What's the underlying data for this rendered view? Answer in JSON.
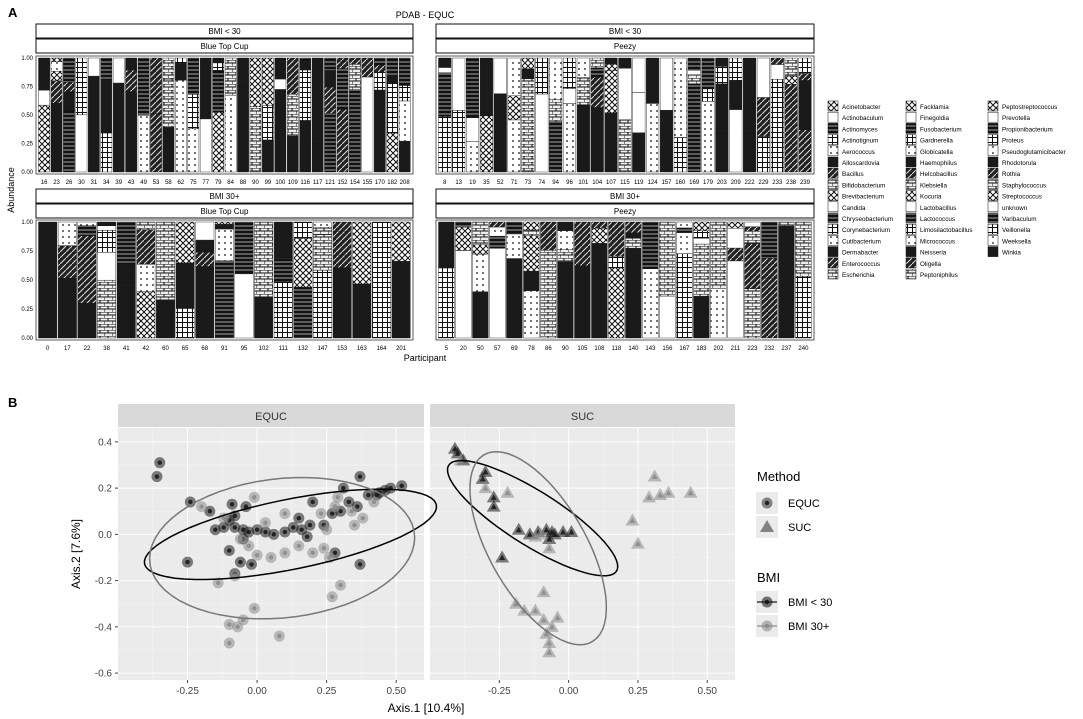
{
  "panel_a_letter": "A",
  "panel_b_letter": "B",
  "chart_data": [
    {
      "type": "bar",
      "title": "PDAB - EQUC",
      "xlabel": "Participant",
      "ylabel": "Abundance",
      "y_ticks": [
        "0.00",
        "0.25",
        "0.50",
        "0.75",
        "1.00"
      ],
      "ylim": [
        0,
        1
      ],
      "stacked": true,
      "facets": [
        {
          "bmi": "BMI < 30",
          "method": "Blue Top Cup",
          "participants": [
            "16",
            "23",
            "26",
            "30",
            "31",
            "34",
            "39",
            "43",
            "49",
            "53",
            "58",
            "62",
            "75",
            "77",
            "79",
            "84",
            "88",
            "90",
            "99",
            "100",
            "109",
            "116",
            "117",
            "121",
            "152",
            "154",
            "155",
            "170",
            "182",
            "208"
          ]
        },
        {
          "bmi": "BMI < 30",
          "method": "Peezy",
          "participants": [
            "8",
            "13",
            "19",
            "35",
            "52",
            "71",
            "73",
            "74",
            "94",
            "96",
            "101",
            "104",
            "107",
            "115",
            "119",
            "124",
            "157",
            "160",
            "169",
            "179",
            "203",
            "209",
            "222",
            "229",
            "233",
            "238",
            "239"
          ]
        },
        {
          "bmi": "BMI 30+",
          "method": "Blue Top Cup",
          "participants": [
            "0",
            "17",
            "22",
            "38",
            "41",
            "42",
            "60",
            "65",
            "68",
            "91",
            "95",
            "102",
            "111",
            "132",
            "147",
            "153",
            "163",
            "164",
            "201"
          ]
        },
        {
          "bmi": "BMI 30+",
          "method": "Peezy",
          "participants": [
            "5",
            "20",
            "50",
            "57",
            "69",
            "78",
            "86",
            "90",
            "105",
            "108",
            "118",
            "140",
            "143",
            "156",
            "167",
            "183",
            "202",
            "211",
            "223",
            "232",
            "237",
            "240"
          ]
        }
      ],
      "legend": [
        "Acinetobacter",
        "Actinobaculum",
        "Actinomyces",
        "Actinotignum",
        "Aerococcus",
        "Alloscardovia",
        "Bacillus",
        "Bifidobacterium",
        "Brevibacterium",
        "Candida",
        "Chryseobacterium",
        "Corynebacterium",
        "Cutibacterium",
        "Dermabacter",
        "Enterococcus",
        "Escherichia",
        "Facklamia",
        "Finegoldia",
        "Fusobacterium",
        "Gardnerella",
        "Globicatella",
        "Haemophilus",
        "Helcobacillus",
        "Klebsiella",
        "Kocuria",
        "Lactobacillus",
        "Lactococcus",
        "Limosilactobacillus",
        "Micrococcus",
        "Neisseria",
        "Oligella",
        "Peptoniphilus",
        "Peptostreptococcus",
        "Prevotella",
        "Propionibacterium",
        "Proteus",
        "Pseudoglutamicibacter",
        "Rhodotorula",
        "Rothia",
        "Staphylococcus",
        "Streptococcus",
        "unknown",
        "Varibaculum",
        "Veillonella",
        "Weeksella",
        "Winkia"
      ]
    },
    {
      "type": "scatter",
      "xlabel": "Axis.1   [10.4%]",
      "ylabel": "Axis.2   [7.6%]",
      "xlim": [
        -0.5,
        0.6
      ],
      "ylim": [
        -0.63,
        0.46
      ],
      "x_ticks": [
        "-0.25",
        "0.00",
        "0.25",
        "0.50"
      ],
      "y_ticks": [
        "0.4",
        "0.2",
        "0.0",
        "-0.2",
        "-0.4",
        "-0.6"
      ],
      "facet_labels": [
        "EQUC",
        "SUC"
      ],
      "legend_method_title": "Method",
      "legend_method": [
        "EQUC",
        "SUC"
      ],
      "legend_bmi_title": "BMI",
      "legend_bmi": [
        "BMI < 30",
        "BMI 30+"
      ],
      "colors": {
        "bmi_lt30": "#1a1a1a",
        "bmi_30plus": "#8c8c8c",
        "panel_bg": "#ebebeb",
        "strip_bg": "#d9d9d9"
      },
      "ellipses": [
        {
          "facet": "EQUC",
          "group": "BMI < 30",
          "cx": 0.12,
          "cy": 0.0,
          "rx": 0.54,
          "ry": 0.15,
          "angle_deg": 14
        },
        {
          "facet": "EQUC",
          "group": "BMI 30+",
          "cx": 0.09,
          "cy": -0.06,
          "rx": 0.48,
          "ry": 0.3,
          "angle_deg": 9
        },
        {
          "facet": "SUC",
          "group": "BMI < 30",
          "cx": -0.13,
          "cy": 0.07,
          "rx": 0.38,
          "ry": 0.11,
          "angle_deg": -38
        },
        {
          "facet": "SUC",
          "group": "BMI 30+",
          "cx": -0.11,
          "cy": -0.06,
          "rx": 0.45,
          "ry": 0.18,
          "angle_deg": -66
        }
      ],
      "series": [
        {
          "facet": "EQUC",
          "group": "BMI < 30",
          "points": [
            [
              -0.35,
              0.31
            ],
            [
              -0.36,
              0.25
            ],
            [
              -0.24,
              0.14
            ],
            [
              -0.09,
              0.13
            ],
            [
              -0.04,
              0.12
            ],
            [
              -0.17,
              0.1
            ],
            [
              -0.08,
              0.08
            ],
            [
              -0.1,
              0.06
            ],
            [
              -0.12,
              0.03
            ],
            [
              -0.08,
              0.03
            ],
            [
              -0.05,
              0.02
            ],
            [
              -0.03,
              0.01
            ],
            [
              0.0,
              0.02
            ],
            [
              0.03,
              0.01
            ],
            [
              0.06,
              0.0
            ],
            [
              0.1,
              0.01
            ],
            [
              0.13,
              0.03
            ],
            [
              0.16,
              0.02
            ],
            [
              0.19,
              0.04
            ],
            [
              0.18,
              -0.01
            ],
            [
              0.24,
              0.04
            ],
            [
              0.27,
              0.09
            ],
            [
              0.3,
              0.1
            ],
            [
              0.33,
              0.14
            ],
            [
              0.36,
              0.12
            ],
            [
              0.4,
              0.17
            ],
            [
              0.43,
              0.17
            ],
            [
              0.46,
              0.19
            ],
            [
              0.48,
              0.2
            ],
            [
              0.52,
              0.21
            ],
            [
              0.44,
              0.18
            ],
            [
              0.31,
              0.2
            ],
            [
              0.37,
              0.25
            ],
            [
              0.2,
              0.14
            ],
            [
              0.15,
              0.07
            ],
            [
              -0.1,
              -0.07
            ],
            [
              -0.06,
              -0.12
            ],
            [
              -0.02,
              -0.13
            ],
            [
              -0.08,
              -0.17
            ],
            [
              0.28,
              -0.08
            ],
            [
              0.37,
              -0.13
            ],
            [
              -0.25,
              -0.12
            ],
            [
              -0.05,
              -0.02
            ],
            [
              -0.15,
              0.02
            ]
          ]
        },
        {
          "facet": "EQUC",
          "group": "BMI 30+",
          "points": [
            [
              -0.2,
              0.12
            ],
            [
              -0.12,
              0.07
            ],
            [
              -0.06,
              -0.02
            ],
            [
              -0.03,
              -0.05
            ],
            [
              0.0,
              -0.09
            ],
            [
              0.05,
              -0.1
            ],
            [
              0.1,
              -0.08
            ],
            [
              0.15,
              -0.05
            ],
            [
              0.2,
              -0.08
            ],
            [
              0.24,
              -0.06
            ],
            [
              0.26,
              -0.1
            ],
            [
              0.25,
              0.02
            ],
            [
              0.28,
              0.12
            ],
            [
              0.34,
              0.1
            ],
            [
              0.38,
              0.07
            ],
            [
              0.35,
              0.04
            ],
            [
              0.42,
              0.14
            ],
            [
              0.29,
              0.16
            ],
            [
              0.23,
              0.09
            ],
            [
              -0.14,
              -0.21
            ],
            [
              -0.08,
              -0.18
            ],
            [
              0.27,
              -0.27
            ],
            [
              0.3,
              -0.22
            ],
            [
              -0.01,
              -0.32
            ],
            [
              -0.07,
              -0.4
            ],
            [
              -0.05,
              -0.37
            ],
            [
              -0.1,
              -0.39
            ],
            [
              0.08,
              -0.44
            ],
            [
              -0.1,
              -0.47
            ],
            [
              0.1,
              0.09
            ],
            [
              -0.01,
              0.16
            ],
            [
              0.03,
              0.05
            ]
          ]
        },
        {
          "facet": "SUC",
          "group": "BMI < 30",
          "points": [
            [
              -0.41,
              0.37
            ],
            [
              -0.4,
              0.35
            ],
            [
              -0.38,
              0.32
            ],
            [
              -0.3,
              0.27
            ],
            [
              -0.31,
              0.24
            ],
            [
              -0.27,
              0.16
            ],
            [
              -0.27,
              0.12
            ],
            [
              -0.18,
              0.02
            ],
            [
              -0.14,
              0.0
            ],
            [
              -0.11,
              0.01
            ],
            [
              -0.08,
              0.02
            ],
            [
              -0.06,
              0.01
            ],
            [
              -0.05,
              0.0
            ],
            [
              -0.07,
              -0.02
            ],
            [
              -0.02,
              0.01
            ],
            [
              0.01,
              0.01
            ],
            [
              -0.24,
              -0.1
            ]
          ]
        },
        {
          "facet": "SUC",
          "group": "BMI 30+",
          "points": [
            [
              -0.39,
              0.32
            ],
            [
              -0.3,
              0.2
            ],
            [
              -0.22,
              0.18
            ],
            [
              -0.1,
              0.0
            ],
            [
              -0.12,
              -0.01
            ],
            [
              -0.07,
              -0.06
            ],
            [
              -0.09,
              -0.25
            ],
            [
              -0.19,
              -0.3
            ],
            [
              -0.16,
              -0.33
            ],
            [
              -0.12,
              -0.33
            ],
            [
              -0.09,
              -0.37
            ],
            [
              -0.06,
              -0.4
            ],
            [
              -0.08,
              -0.43
            ],
            [
              -0.07,
              -0.47
            ],
            [
              -0.07,
              -0.51
            ],
            [
              0.23,
              0.06
            ],
            [
              0.25,
              -0.04
            ],
            [
              0.29,
              0.16
            ],
            [
              0.33,
              0.17
            ],
            [
              0.36,
              0.18
            ],
            [
              0.44,
              0.18
            ],
            [
              0.31,
              0.25
            ],
            [
              -0.04,
              -0.36
            ]
          ]
        }
      ]
    }
  ]
}
